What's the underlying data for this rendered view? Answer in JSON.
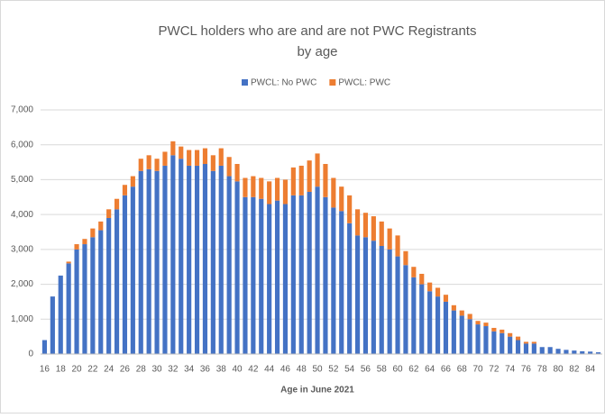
{
  "chart_data": {
    "type": "bar",
    "stacked": true,
    "title": [
      "PWCL holders who are and are not PWC Registrants",
      "by age"
    ],
    "x_label": "Age in June 2021",
    "categories": [
      "16",
      null,
      "18",
      null,
      "20",
      null,
      "22",
      null,
      "24",
      null,
      "26",
      null,
      "28",
      null,
      "30",
      null,
      "32",
      null,
      "34",
      null,
      "36",
      null,
      "38",
      null,
      "40",
      null,
      "42",
      null,
      "44",
      null,
      "46",
      null,
      "48",
      null,
      "50",
      null,
      "52",
      null,
      "54",
      null,
      "56",
      null,
      "58",
      null,
      "60",
      null,
      "62",
      null,
      "64",
      null,
      "66",
      null,
      "68",
      null,
      "70",
      null,
      "72",
      null,
      "74",
      null,
      "76",
      null,
      "78",
      null,
      "80",
      null,
      "82",
      null,
      "84",
      null
    ],
    "series": [
      {
        "name": "PWCL: No PWC",
        "color": "#4472c4",
        "values": [
          400,
          1650,
          2250,
          2600,
          3000,
          3150,
          3350,
          3550,
          3900,
          4150,
          4550,
          4800,
          5250,
          5300,
          5250,
          5400,
          5700,
          5600,
          5400,
          5400,
          5450,
          5250,
          5400,
          5100,
          4950,
          4500,
          4500,
          4450,
          4300,
          4400,
          4300,
          4550,
          4550,
          4650,
          4800,
          4500,
          4200,
          4100,
          3750,
          3400,
          3350,
          3250,
          3100,
          3000,
          2800,
          2550,
          2200,
          2000,
          1800,
          1650,
          1500,
          1250,
          1100,
          1000,
          850,
          800,
          650,
          600,
          500,
          400,
          300,
          300,
          200,
          200,
          150,
          120,
          100,
          80,
          70,
          50
        ]
      },
      {
        "name": "PWCL: PWC",
        "color": "#ed7d31",
        "values": [
          0,
          0,
          0,
          50,
          150,
          150,
          250,
          250,
          250,
          300,
          300,
          300,
          350,
          400,
          350,
          400,
          400,
          350,
          450,
          450,
          450,
          450,
          500,
          550,
          500,
          550,
          600,
          600,
          650,
          650,
          700,
          800,
          850,
          900,
          950,
          950,
          850,
          700,
          800,
          750,
          700,
          700,
          700,
          600,
          600,
          400,
          300,
          300,
          250,
          250,
          200,
          150,
          150,
          150,
          100,
          100,
          100,
          100,
          100,
          100,
          50,
          50,
          0,
          0,
          0,
          0,
          0,
          0,
          0,
          0
        ]
      }
    ],
    "ylim": [
      0,
      7000
    ],
    "yticks": [
      0,
      {
        "value": 1000,
        "label": "1,000"
      },
      {
        "value": 2000,
        "label": "2,000"
      },
      {
        "value": 3000,
        "label": "3,000"
      },
      {
        "value": 4000,
        "label": "4,000"
      },
      {
        "value": 5000,
        "label": "5,000"
      },
      {
        "value": 6000,
        "label": "6,000"
      },
      {
        "value": 7000,
        "label": "7,000"
      }
    ],
    "grid": true,
    "legend": "top"
  }
}
